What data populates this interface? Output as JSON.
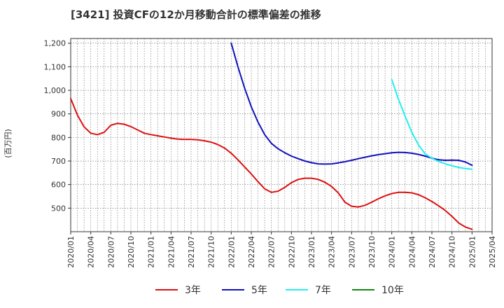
{
  "chart_data": {
    "type": "line",
    "title": "[3421]  投資CFの12か月移動合計の標準偏差の推移",
    "ylabel": "(百万円)",
    "ylim": [
      400,
      1220
    ],
    "yticks": [
      500,
      600,
      700,
      800,
      900,
      1000,
      1100,
      1200
    ],
    "ytick_labels": [
      "500",
      "600",
      "700",
      "800",
      "900",
      "1,000",
      "1,100",
      "1,200"
    ],
    "x_start": "2020-01",
    "x_end": "2025-04",
    "xticks": [
      "2020/01",
      "2020/04",
      "2020/07",
      "2020/10",
      "2021/01",
      "2021/04",
      "2021/07",
      "2021/10",
      "2022/01",
      "2022/04",
      "2022/07",
      "2022/10",
      "2023/01",
      "2023/04",
      "2023/07",
      "2023/10",
      "2024/01",
      "2024/04",
      "2024/07",
      "2024/10",
      "2025/01",
      "2025/04"
    ],
    "grid": true,
    "legend_position": "bottom",
    "series": [
      {
        "name": "3年",
        "color": "#dd1111",
        "x": [
          "2020-01",
          "2020-02",
          "2020-03",
          "2020-04",
          "2020-05",
          "2020-06",
          "2020-07",
          "2020-08",
          "2020-09",
          "2020-10",
          "2020-11",
          "2020-12",
          "2021-01",
          "2021-02",
          "2021-03",
          "2021-04",
          "2021-05",
          "2021-06",
          "2021-07",
          "2021-08",
          "2021-09",
          "2021-10",
          "2021-11",
          "2021-12",
          "2022-01",
          "2022-02",
          "2022-03",
          "2022-04",
          "2022-05",
          "2022-06",
          "2022-07",
          "2022-08",
          "2022-09",
          "2022-10",
          "2022-11",
          "2022-12",
          "2023-01",
          "2023-02",
          "2023-03",
          "2023-04",
          "2023-05",
          "2023-06",
          "2023-07",
          "2023-08",
          "2023-09",
          "2023-10",
          "2023-11",
          "2023-12",
          "2024-01",
          "2024-02",
          "2024-03",
          "2024-04",
          "2024-05",
          "2024-06",
          "2024-07",
          "2024-08",
          "2024-09",
          "2024-10",
          "2024-11",
          "2024-12",
          "2025-01"
        ],
        "values": [
          965,
          895,
          845,
          818,
          812,
          822,
          852,
          860,
          856,
          846,
          832,
          818,
          812,
          807,
          802,
          797,
          793,
          792,
          792,
          790,
          786,
          780,
          770,
          755,
          733,
          705,
          675,
          645,
          612,
          582,
          567,
          572,
          588,
          608,
          622,
          627,
          627,
          622,
          610,
          592,
          565,
          525,
          508,
          505,
          512,
          525,
          540,
          552,
          562,
          567,
          567,
          565,
          557,
          544,
          528,
          510,
          490,
          465,
          437,
          420,
          410
        ],
        "start": "2020-01"
      },
      {
        "name": "5年",
        "color": "#1111bb",
        "x": [
          "2022-01",
          "2022-02",
          "2022-03",
          "2022-04",
          "2022-05",
          "2022-06",
          "2022-07",
          "2022-08",
          "2022-09",
          "2022-10",
          "2022-11",
          "2022-12",
          "2023-01",
          "2023-02",
          "2023-03",
          "2023-04",
          "2023-05",
          "2023-06",
          "2023-07",
          "2023-08",
          "2023-09",
          "2023-10",
          "2023-11",
          "2023-12",
          "2024-01",
          "2024-02",
          "2024-03",
          "2024-04",
          "2024-05",
          "2024-06",
          "2024-07",
          "2024-08",
          "2024-09",
          "2024-10",
          "2024-11",
          "2024-12",
          "2025-01"
        ],
        "values": [
          1200,
          1100,
          1010,
          930,
          865,
          812,
          775,
          752,
          735,
          721,
          710,
          700,
          693,
          688,
          687,
          688,
          692,
          697,
          703,
          710,
          716,
          722,
          727,
          731,
          735,
          737,
          736,
          733,
          728,
          721,
          712,
          705,
          703,
          704,
          703,
          696,
          682
        ]
      },
      {
        "name": "7年",
        "color": "#22eeee",
        "x": [
          "2024-01",
          "2024-02",
          "2024-03",
          "2024-04",
          "2024-05",
          "2024-06",
          "2024-07",
          "2024-08",
          "2024-09",
          "2024-10",
          "2024-11",
          "2024-12",
          "2025-01"
        ],
        "values": [
          1045,
          962,
          890,
          822,
          768,
          730,
          712,
          698,
          688,
          680,
          673,
          668,
          665
        ]
      },
      {
        "name": "10年",
        "color": "#118811",
        "x": [],
        "values": []
      }
    ]
  }
}
